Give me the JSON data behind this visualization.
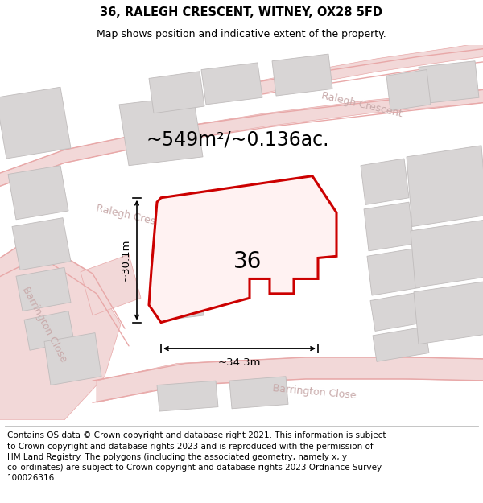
{
  "title": "36, RALEGH CRESCENT, WITNEY, OX28 5FD",
  "subtitle": "Map shows position and indicative extent of the property.",
  "footer": "Contains OS data © Crown copyright and database right 2021. This information is subject\nto Crown copyright and database rights 2023 and is reproduced with the permission of\nHM Land Registry. The polygons (including the associated geometry, namely x, y\nco-ordinates) are subject to Crown copyright and database rights 2023 Ordnance Survey\n100026316.",
  "map_bg": "#f8f4f4",
  "road_fill": "#f2d8d8",
  "road_line": "#e8a8a8",
  "building_fill": "#d8d5d5",
  "building_edge": "#c0bcbc",
  "highlight_color": "#cc0000",
  "highlight_fill": "#fff2f2",
  "area_label": "~549m²/~0.136ac.",
  "dim_h_label": "~30.1m",
  "dim_w_label": "~34.3m",
  "title_fontsize": 10.5,
  "subtitle_fontsize": 9,
  "footer_fontsize": 7.5,
  "area_fontsize": 17,
  "label_fontsize": 20,
  "dim_fontsize": 9.5,
  "road_label_color": "#c8aaaa",
  "road_label_fontsize": 9
}
